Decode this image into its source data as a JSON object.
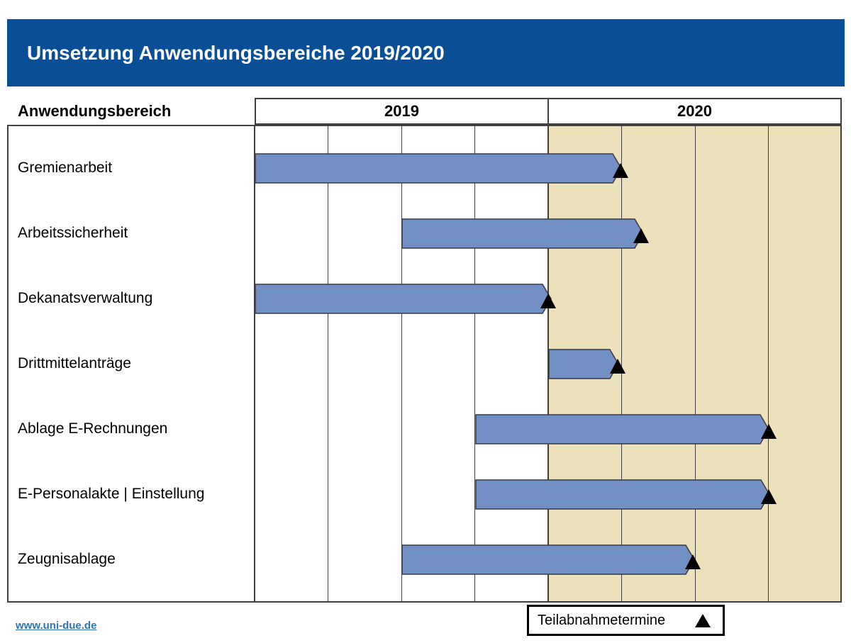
{
  "title": "Umsetzung Anwendungsbereiche 2019/2020",
  "footer": {
    "link": "www.uni-due.de"
  },
  "legend": {
    "label": "Teilabnahmetermine",
    "marker": "black-triangle"
  },
  "colors": {
    "banner_blue": "#0a4f96",
    "bar_fill": "#7390c4",
    "bar_border": "#3a3a3a",
    "shading_2020": "#ede1bc",
    "grid_line": "#404040",
    "milestone_black": "#000000",
    "link_blue": "#2e75b6"
  },
  "chart_data": {
    "type": "bar",
    "variant": "gantt",
    "title": "Umsetzung Anwendungsbereiche 2019/2020",
    "row_header": "Anwendungsbereich",
    "years": [
      "2019",
      "2020"
    ],
    "quarters_per_year": 4,
    "axis": {
      "start": "2019-Q1",
      "end": "2020-Q4",
      "unit": "quarter",
      "gridlines": "quarterly"
    },
    "shaded_year": "2020",
    "milestone_legend": "Teilabnahmetermine",
    "rows": [
      {
        "label": "Gremienarbeit",
        "start_q": 0,
        "end_q": 5.0,
        "milestone_q": 4.99,
        "period": "2019 Q1 – 2020 Q1"
      },
      {
        "label": "Arbeitssicherheit",
        "start_q": 2.0,
        "end_q": 5.3,
        "milestone_q": 5.27,
        "period": "2019 Q3 – 2020 Q2 (Anfang)"
      },
      {
        "label": "Dekanatsverwaltung",
        "start_q": 0,
        "end_q": 4.05,
        "milestone_q": 4.0,
        "period": "2019 Q1 – 2019 Q4"
      },
      {
        "label": "Drittmittelanträge",
        "start_q": 4.0,
        "end_q": 4.97,
        "milestone_q": 4.95,
        "period": "2020 Q1"
      },
      {
        "label": "Ablage E-Rechnungen",
        "start_q": 3.0,
        "end_q": 7.01,
        "milestone_q": 7.0,
        "period": "2019 Q4 – 2020 Q3"
      },
      {
        "label": "E-Personalakte | Einstellung",
        "start_q": 3.0,
        "end_q": 7.02,
        "milestone_q": 7.0,
        "period": "2019 Q4 – 2020 Q3"
      },
      {
        "label": "Zeugnisablage",
        "start_q": 2.0,
        "end_q": 6.0,
        "milestone_q": 5.97,
        "period": "2019 Q3 – 2020 Q2"
      }
    ]
  }
}
